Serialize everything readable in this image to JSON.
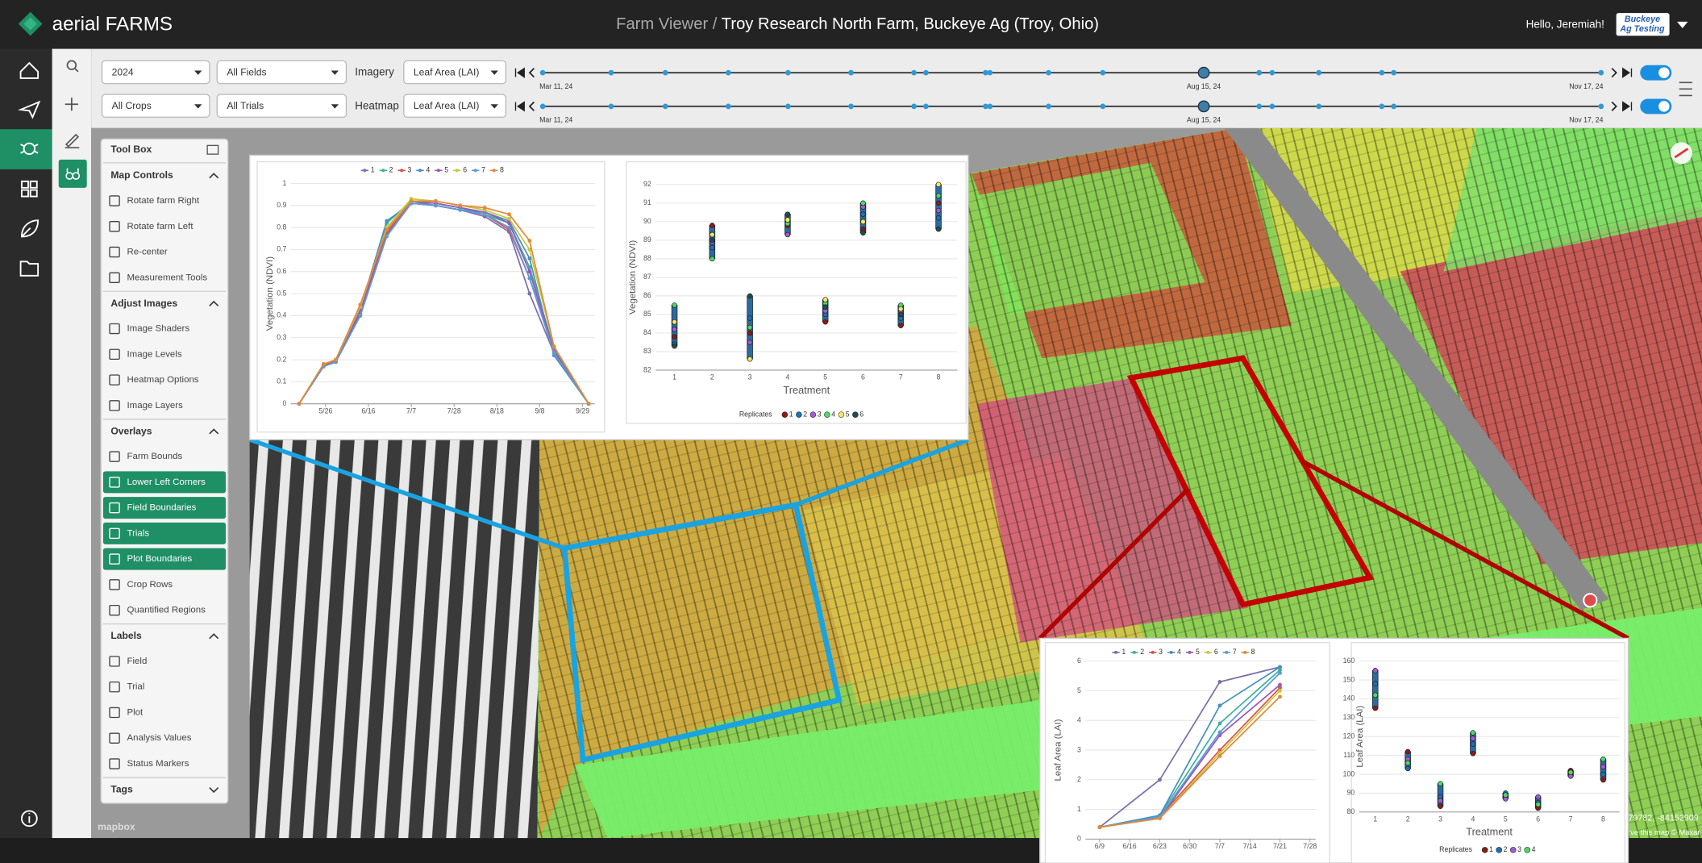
{
  "header": {
    "logo": "aerial FARMS",
    "section": "Farm Viewer /",
    "farm": "Troy Research North Farm, Buckeye Ag (Troy, Ohio)",
    "greeting": "Hello, Jeremiah!",
    "badge": [
      "Buckeye",
      "Ag Testing"
    ]
  },
  "toolbar": {
    "rows": [
      {
        "first": "2024",
        "second": "All Fields",
        "label": "Imagery",
        "layer": "Leaf Area (LAI)"
      },
      {
        "first": "All Crops",
        "second": "All Trials",
        "label": "Heatmap",
        "layer": "Leaf Area (LAI)"
      }
    ],
    "dates": [
      "Mar 11, 24",
      "Aug 15, 24",
      "Nov 17, 24"
    ]
  },
  "toolbox": {
    "title": "Tool Box",
    "sections": [
      {
        "title": "Map Controls",
        "expanded": true,
        "items": [
          {
            "label": "Rotate farm Right",
            "active": false
          },
          {
            "label": "Rotate farm Left",
            "active": false
          },
          {
            "label": "Re-center",
            "active": false
          },
          {
            "label": "Measurement Tools",
            "active": false
          }
        ]
      },
      {
        "title": "Adjust Images",
        "expanded": true,
        "items": [
          {
            "label": "Image Shaders",
            "active": false
          },
          {
            "label": "Image Levels",
            "active": false
          },
          {
            "label": "Heatmap Options",
            "active": false
          },
          {
            "label": "Image Layers",
            "active": false
          }
        ]
      },
      {
        "title": "Overlays",
        "expanded": true,
        "items": [
          {
            "label": "Farm Bounds",
            "active": false
          },
          {
            "label": "Lower Left Corners",
            "active": true
          },
          {
            "label": "Field Boundaries",
            "active": true
          },
          {
            "label": "Trials",
            "active": true
          },
          {
            "label": "Plot Boundaries",
            "active": true
          },
          {
            "label": "Crop Rows",
            "active": false
          },
          {
            "label": "Quantified Regions",
            "active": false
          }
        ]
      },
      {
        "title": "Labels",
        "expanded": true,
        "items": [
          {
            "label": "Field",
            "active": false
          },
          {
            "label": "Trial",
            "active": false
          },
          {
            "label": "Plot",
            "active": false
          },
          {
            "label": "Analysis Values",
            "active": false
          },
          {
            "label": "Status Markers",
            "active": false
          }
        ]
      },
      {
        "title": "Tags",
        "expanded": false,
        "items": []
      }
    ]
  },
  "map": {
    "attribution": "mapbox",
    "coords": "79782, -84152909",
    "credit": "ve this map © Maxar"
  },
  "chart_data": [
    {
      "type": "line",
      "ylabel": "Vegetation (NDVI)",
      "x": [
        -13,
        -1,
        5,
        17,
        30,
        42,
        54,
        66,
        78,
        90,
        100,
        112,
        129
      ],
      "xlim": [
        -17,
        132
      ],
      "xticks": [
        {
          "value": 0,
          "label": "5/26"
        },
        {
          "value": 21,
          "label": "6/16"
        },
        {
          "value": 42,
          "label": "7/7"
        },
        {
          "value": 63,
          "label": "7/28"
        },
        {
          "value": 84,
          "label": "8/18"
        },
        {
          "value": 105,
          "label": "9/8"
        },
        {
          "value": 126,
          "label": "9/29"
        }
      ],
      "ylim": [
        0,
        1
      ],
      "yticks": [
        0,
        0.1,
        0.2,
        0.3,
        0.4,
        0.5,
        0.6,
        0.7,
        0.8,
        0.9,
        1
      ],
      "grid": true,
      "legend": "top",
      "series": [
        {
          "name": "1",
          "color": "#7b6fb0",
          "values": [
            0,
            0.17,
            0.19,
            0.4,
            0.77,
            0.92,
            0.9,
            0.88,
            0.85,
            0.78,
            0.5,
            0.23,
            0
          ]
        },
        {
          "name": "2",
          "color": "#3fb39a",
          "values": [
            0,
            0.17,
            0.2,
            0.42,
            0.82,
            0.92,
            0.91,
            0.89,
            0.86,
            0.82,
            0.62,
            0.25,
            0
          ]
        },
        {
          "name": "3",
          "color": "#d9534f",
          "values": [
            0,
            0.18,
            0.19,
            0.41,
            0.78,
            0.91,
            0.9,
            0.88,
            0.86,
            0.79,
            0.57,
            0.24,
            0
          ]
        },
        {
          "name": "4",
          "color": "#4a90c0",
          "values": [
            0,
            0.17,
            0.19,
            0.43,
            0.83,
            0.91,
            0.9,
            0.88,
            0.87,
            0.83,
            0.66,
            0.22,
            0
          ]
        },
        {
          "name": "5",
          "color": "#9b59b6",
          "values": [
            0,
            0.17,
            0.19,
            0.42,
            0.79,
            0.92,
            0.91,
            0.89,
            0.87,
            0.82,
            0.6,
            0.24,
            0
          ]
        },
        {
          "name": "6",
          "color": "#c8c83a",
          "values": [
            0,
            0.18,
            0.2,
            0.44,
            0.8,
            0.93,
            0.92,
            0.9,
            0.88,
            0.84,
            0.7,
            0.26,
            0
          ]
        },
        {
          "name": "7",
          "color": "#5b9bd5",
          "values": [
            0,
            0.17,
            0.19,
            0.4,
            0.76,
            0.91,
            0.9,
            0.88,
            0.86,
            0.8,
            0.57,
            0.23,
            0
          ]
        },
        {
          "name": "8",
          "color": "#e08a3c",
          "values": [
            0,
            0.18,
            0.2,
            0.45,
            0.79,
            0.92,
            0.92,
            0.9,
            0.89,
            0.86,
            0.74,
            0.26,
            0
          ]
        }
      ]
    },
    {
      "type": "dot",
      "ylabel": "Vegetation (NDVI)",
      "xlabel": "Treatment",
      "categories": [
        "1",
        "2",
        "3",
        "4",
        "5",
        "6",
        "7",
        "8"
      ],
      "ylim": [
        82,
        92
      ],
      "yticks": [
        82,
        83,
        84,
        85,
        86,
        87,
        88,
        89,
        90,
        91,
        92
      ],
      "grid": true,
      "legend_title": "Replicates",
      "series": [
        {
          "name": "1",
          "color": "#8b1a1a",
          "values": [
            83.8,
            89.8,
            84,
            89.8,
            84.6,
            89.6,
            84.4,
            91
          ]
        },
        {
          "name": "2",
          "color": "#1f6fb5",
          "values": [
            83.4,
            88.6,
            84.8,
            90,
            85,
            90.4,
            84.8,
            90.2
          ]
        },
        {
          "name": "3",
          "color": "#a05cd6",
          "values": [
            84.2,
            88.9,
            83.5,
            89.3,
            85.2,
            90.8,
            85.1,
            90.6
          ]
        },
        {
          "name": "4",
          "color": "#4cd964",
          "values": [
            85.5,
            88,
            84.3,
            89.9,
            85.6,
            91,
            85.5,
            91.4
          ]
        },
        {
          "name": "5",
          "color": "#f5e663",
          "values": [
            84.6,
            89.3,
            82.6,
            90.1,
            85.8,
            90,
            85.3,
            92
          ]
        },
        {
          "name": "6",
          "color": "#1d4e4e",
          "values": [
            83.3,
            89,
            86,
            90.4,
            85.4,
            89.4,
            85,
            89.6
          ]
        }
      ]
    },
    {
      "type": "line",
      "ylabel": "Leaf Area (LAI)",
      "x": [
        0,
        14,
        28,
        42
      ],
      "xlim": [
        -3.3,
        50.3
      ],
      "xticks": [
        {
          "value": 0,
          "label": "6/9"
        },
        {
          "value": 7,
          "label": "6/16"
        },
        {
          "value": 14,
          "label": "6/23"
        },
        {
          "value": 21,
          "label": "6/30"
        },
        {
          "value": 28,
          "label": "7/7"
        },
        {
          "value": 35,
          "label": "7/14"
        },
        {
          "value": 42,
          "label": "7/21"
        },
        {
          "value": 49,
          "label": "7/28"
        }
      ],
      "ylim": [
        0,
        6
      ],
      "yticks": [
        0,
        1,
        2,
        3,
        4,
        5,
        6
      ],
      "grid": true,
      "legend": "top",
      "series": [
        {
          "name": "1",
          "color": "#7b6fb0",
          "values": [
            0.4,
            2,
            5.3,
            5.8
          ]
        },
        {
          "name": "2",
          "color": "#3fb39a",
          "values": [
            0.4,
            0.8,
            3.9,
            5.7
          ]
        },
        {
          "name": "3",
          "color": "#d9534f",
          "values": [
            0.4,
            0.75,
            3,
            5.1
          ]
        },
        {
          "name": "4",
          "color": "#4a90c0",
          "values": [
            0.4,
            0.8,
            4.5,
            5.8
          ]
        },
        {
          "name": "5",
          "color": "#9b59b6",
          "values": [
            0.4,
            0.7,
            3.5,
            5.2
          ]
        },
        {
          "name": "6",
          "color": "#c8c83a",
          "values": [
            0.4,
            0.7,
            2.9,
            5
          ]
        },
        {
          "name": "7",
          "color": "#5b9bd5",
          "values": [
            0.4,
            0.75,
            3.6,
            5.6
          ]
        },
        {
          "name": "8",
          "color": "#e08a3c",
          "values": [
            0.4,
            0.7,
            2.8,
            4.8
          ]
        }
      ]
    },
    {
      "type": "dot",
      "ylabel": "Leaf Area (LAI)",
      "xlabel": "Treatment",
      "categories": [
        "1",
        "2",
        "3",
        "4",
        "5",
        "6",
        "7",
        "8"
      ],
      "ylim": [
        80,
        160
      ],
      "yticks": [
        80,
        90,
        100,
        110,
        120,
        130,
        140,
        150,
        160
      ],
      "grid": true,
      "legend_title": "Replicates",
      "series": [
        {
          "name": "1",
          "color": "#8b1a1a",
          "values": [
            135,
            112,
            83,
            111,
            88,
            82,
            102,
            97
          ]
        },
        {
          "name": "2",
          "color": "#1f6fb5",
          "values": [
            148,
            103,
            88,
            116,
            90,
            85,
            100,
            100
          ]
        },
        {
          "name": "3",
          "color": "#a05cd6",
          "values": [
            155,
            108,
            86,
            119,
            87,
            88,
            99,
            104
          ]
        },
        {
          "name": "4",
          "color": "#4cd964",
          "values": [
            142,
            106,
            95,
            122,
            89,
            84,
            101,
            108
          ]
        }
      ]
    }
  ]
}
